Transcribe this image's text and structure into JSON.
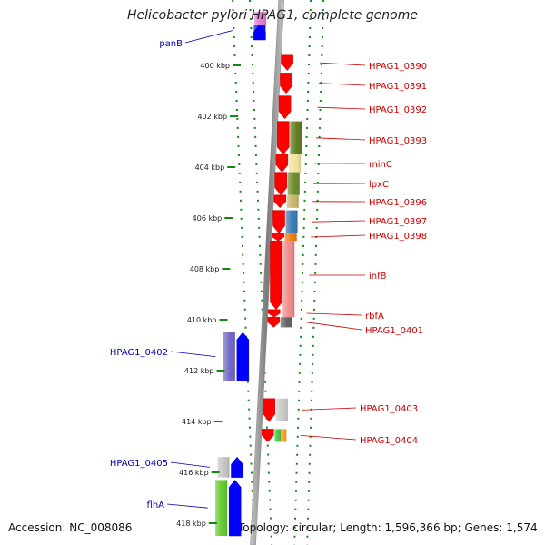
{
  "title": "Helicobacter pylori HPAG1, complete genome",
  "footer": {
    "accession": "Accession: NC_008086",
    "topology": "Topology: circular; Length: 1,596,366 bp; Genes: 1,574"
  },
  "colors": {
    "forward_label": "#0000b0",
    "reverse_label": "#cc0000",
    "tick": "#118811",
    "backbone": "#8a8a8a",
    "forward_gene": "#0000ff",
    "reverse_gene": "#ff0000"
  },
  "scale": {
    "ticks": [
      {
        "kbp": 400,
        "label": "400 kbp"
      },
      {
        "kbp": 402,
        "label": "402 kbp"
      },
      {
        "kbp": 404,
        "label": "404 kbp"
      },
      {
        "kbp": 406,
        "label": "406 kbp"
      },
      {
        "kbp": 408,
        "label": "408 kbp"
      },
      {
        "kbp": 410,
        "label": "410 kbp"
      },
      {
        "kbp": 412,
        "label": "412 kbp"
      },
      {
        "kbp": 414,
        "label": "414 kbp"
      },
      {
        "kbp": 416,
        "label": "416 kbp"
      },
      {
        "kbp": 418,
        "label": "418 kbp"
      }
    ]
  },
  "genes": [
    {
      "name": "panB",
      "strand": "forward",
      "start_kbp": 398.4,
      "end_kbp": 399.0,
      "color": "#0000ff",
      "label": "panB"
    },
    {
      "name": "HPAG1_0390",
      "strand": "reverse",
      "start_kbp": 399.6,
      "end_kbp": 400.2,
      "color": "#ff0000",
      "label": "HPAG1_0390"
    },
    {
      "name": "HPAG1_0391",
      "strand": "reverse",
      "start_kbp": 400.3,
      "end_kbp": 401.1,
      "color": "#ff0000",
      "label": "HPAG1_0391"
    },
    {
      "name": "HPAG1_0392",
      "strand": "reverse",
      "start_kbp": 401.2,
      "end_kbp": 402.1,
      "color": "#ff0000",
      "label": "HPAG1_0392"
    },
    {
      "name": "HPAG1_0393",
      "strand": "reverse",
      "start_kbp": 402.2,
      "end_kbp": 403.5,
      "color": "#ff0000",
      "label": "HPAG1_0393"
    },
    {
      "name": "minC",
      "strand": "reverse",
      "start_kbp": 403.5,
      "end_kbp": 404.2,
      "color": "#ff0000",
      "label": "minC"
    },
    {
      "name": "lpxC",
      "strand": "reverse",
      "start_kbp": 404.2,
      "end_kbp": 405.1,
      "color": "#ff0000",
      "label": "lpxC"
    },
    {
      "name": "HPAG1_0396",
      "strand": "reverse",
      "start_kbp": 405.1,
      "end_kbp": 405.6,
      "color": "#ff0000",
      "label": "HPAG1_0396"
    },
    {
      "name": "HPAG1_0397",
      "strand": "reverse",
      "start_kbp": 405.7,
      "end_kbp": 406.6,
      "color": "#ff0000",
      "label": "HPAG1_0397"
    },
    {
      "name": "HPAG1_0398",
      "strand": "reverse",
      "start_kbp": 406.6,
      "end_kbp": 406.9,
      "color": "#ff0000",
      "label": "HPAG1_0398"
    },
    {
      "name": "infB",
      "strand": "reverse",
      "start_kbp": 406.9,
      "end_kbp": 409.6,
      "color": "#ff0000",
      "label": "infB"
    },
    {
      "name": "rbfA",
      "strand": "reverse",
      "start_kbp": 409.6,
      "end_kbp": 409.9,
      "color": "#ff0000",
      "label": "rbfA"
    },
    {
      "name": "HPAG1_0401",
      "strand": "reverse",
      "start_kbp": 409.9,
      "end_kbp": 410.3,
      "color": "#ff0000",
      "label": "HPAG1_0401"
    },
    {
      "name": "HPAG1_0402",
      "strand": "forward",
      "start_kbp": 410.5,
      "end_kbp": 412.4,
      "color": "#0000ff",
      "label": "HPAG1_0402"
    },
    {
      "name": "HPAG1_0403",
      "strand": "reverse",
      "start_kbp": 413.1,
      "end_kbp": 414.0,
      "color": "#ff0000",
      "label": "HPAG1_0403"
    },
    {
      "name": "HPAG1_0404",
      "strand": "reverse",
      "start_kbp": 414.3,
      "end_kbp": 414.8,
      "color": "#ff0000",
      "label": "HPAG1_0404"
    },
    {
      "name": "HPAG1_0405",
      "strand": "forward",
      "start_kbp": 415.4,
      "end_kbp": 416.2,
      "color": "#0000ff",
      "label": "HPAG1_0405"
    },
    {
      "name": "flhA",
      "strand": "forward",
      "start_kbp": 416.3,
      "end_kbp": 418.5,
      "color": "#0000ff",
      "label": "flhA"
    }
  ],
  "features": [
    {
      "strand": "forward",
      "start_kbp": 397.9,
      "end_kbp": 398.4,
      "color": "#e07ad0"
    },
    {
      "strand": "forward",
      "start_kbp": 398.4,
      "end_kbp": 399.0,
      "color": "#1010e0"
    },
    {
      "strand": "reverse",
      "start_kbp": 402.2,
      "end_kbp": 403.5,
      "color": "#5d7a1e"
    },
    {
      "strand": "reverse",
      "start_kbp": 403.5,
      "end_kbp": 404.2,
      "color": "#f2e29a"
    },
    {
      "strand": "reverse",
      "start_kbp": 404.2,
      "end_kbp": 405.1,
      "color": "#6b8a2a"
    },
    {
      "strand": "reverse",
      "start_kbp": 405.1,
      "end_kbp": 405.6,
      "color": "#c8b46a"
    },
    {
      "strand": "reverse",
      "start_kbp": 405.7,
      "end_kbp": 406.6,
      "color": "#3a78b4"
    },
    {
      "strand": "reverse",
      "start_kbp": 406.6,
      "end_kbp": 406.9,
      "color": "#ee7a0a"
    },
    {
      "strand": "reverse",
      "start_kbp": 406.9,
      "end_kbp": 409.9,
      "color": "#ee8888"
    },
    {
      "strand": "reverse",
      "start_kbp": 409.9,
      "end_kbp": 410.3,
      "color": "#606060"
    },
    {
      "strand": "forward",
      "start_kbp": 410.5,
      "end_kbp": 412.4,
      "color": "#6f65c4"
    },
    {
      "strand": "reverse",
      "start_kbp": 413.1,
      "end_kbp": 414.0,
      "color": "#c8c8c8"
    },
    {
      "strand": "reverse",
      "start_kbp": 414.3,
      "end_kbp": 414.8,
      "color": "#44c444"
    },
    {
      "strand": "reverse",
      "start_kbp": 414.3,
      "end_kbp": 414.8,
      "color": "#ff9a1a"
    },
    {
      "strand": "forward",
      "start_kbp": 415.4,
      "end_kbp": 416.2,
      "color": "#c4c4c4"
    },
    {
      "strand": "forward",
      "start_kbp": 416.3,
      "end_kbp": 418.5,
      "color": "#62c82c"
    }
  ]
}
